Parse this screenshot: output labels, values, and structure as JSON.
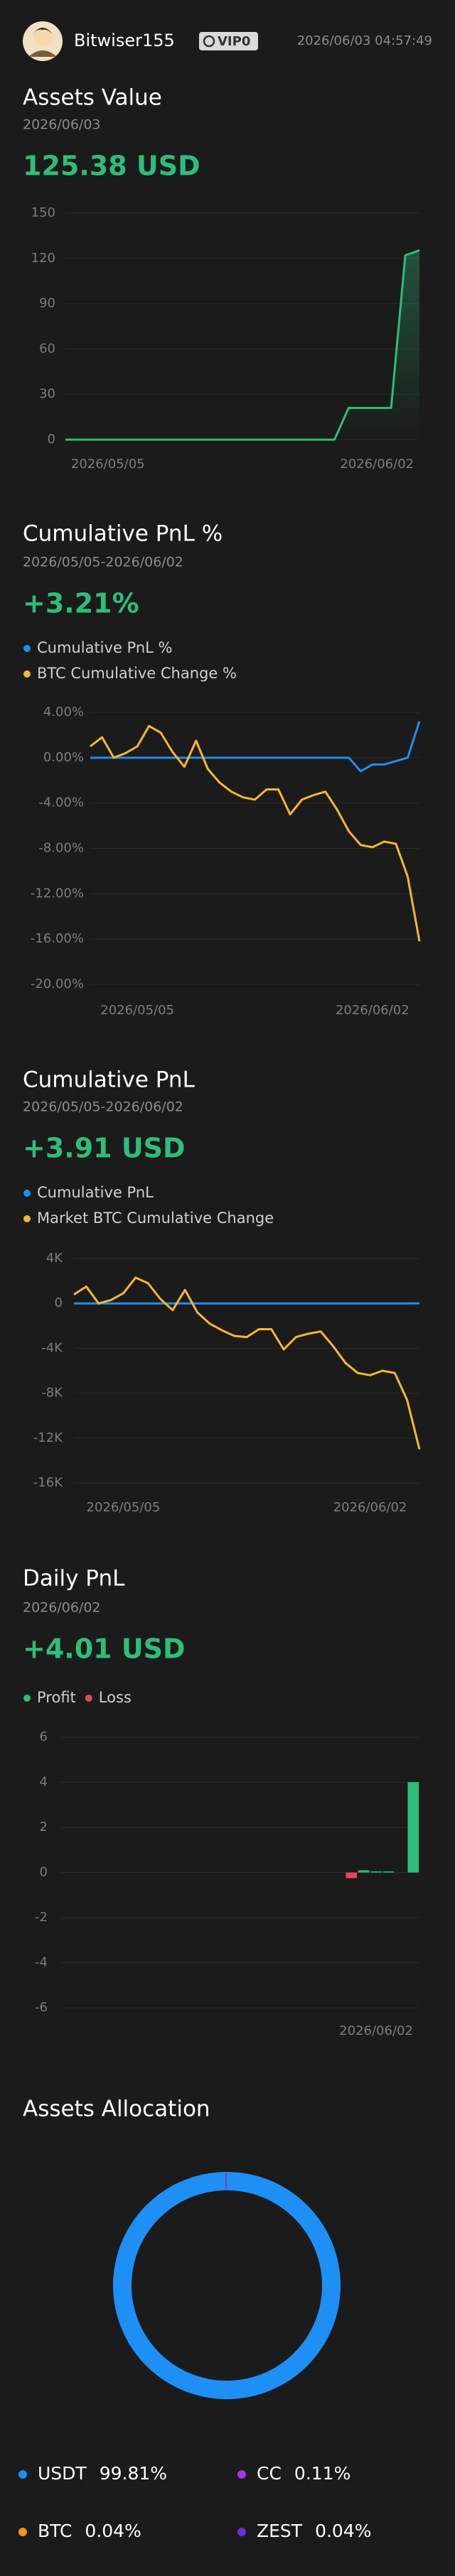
{
  "header": {
    "username": "Bitwiser155",
    "badge": "VIP0",
    "timestamp": "2026/06/03 04:57:49"
  },
  "chart_data": [
    {
      "type": "line",
      "title": "Assets Value",
      "subtitle": "2026/06/03",
      "headline": "125.38 USD",
      "categories": [
        null,
        null,
        null,
        "2026/05/05",
        null,
        null,
        null,
        null,
        null,
        null,
        null,
        null,
        null,
        null,
        null,
        null,
        null,
        null,
        null,
        null,
        null,
        null,
        "2026/06/02",
        null,
        null,
        null
      ],
      "values": [
        0,
        0,
        0,
        0,
        0,
        0,
        0,
        0,
        0,
        0,
        0,
        0,
        0,
        0,
        0,
        0,
        0,
        0,
        0,
        0,
        21,
        21,
        21,
        21,
        122,
        125.38
      ],
      "color": "#2ebd7a",
      "ylim": [
        0,
        150
      ],
      "yticks": [
        0,
        30,
        60,
        90,
        120,
        150
      ],
      "grid": true
    },
    {
      "type": "line",
      "title": "Cumulative PnL %",
      "subtitle": "2026/05/05-2026/06/02",
      "headline": "+3.21%",
      "categories": [
        null,
        null,
        null,
        null,
        "2026/05/05",
        null,
        null,
        null,
        null,
        null,
        null,
        null,
        null,
        null,
        null,
        null,
        null,
        null,
        null,
        null,
        null,
        null,
        null,
        null,
        "2026/06/02",
        null,
        null,
        null,
        null
      ],
      "series": [
        {
          "name": "Cumulative PnL %",
          "color": "#1f8ef1",
          "values": [
            0,
            0,
            0,
            0,
            0,
            0,
            0,
            0,
            0,
            0,
            0,
            0,
            0,
            0,
            0,
            0,
            0,
            0,
            0,
            0,
            0,
            0,
            0,
            -1.2,
            -0.6,
            -0.6,
            -0.3,
            0,
            3.21
          ]
        },
        {
          "name": "BTC Cumulative Change %",
          "color": "#f5b82e",
          "values": [
            1.0,
            1.8,
            0,
            0.4,
            1.0,
            2.8,
            2.2,
            0.5,
            -0.8,
            1.5,
            -1.0,
            -2.2,
            -3.0,
            -3.5,
            -3.7,
            -2.8,
            -2.8,
            -5.0,
            -3.7,
            -3.3,
            -3.0,
            -4.6,
            -6.5,
            -7.7,
            -7.9,
            -7.4,
            -7.6,
            -10.5,
            -16.2
          ]
        }
      ],
      "ylim": [
        -20,
        4
      ],
      "yticks": [
        {
          "value": 4,
          "label": "4.00%"
        },
        {
          "value": 0,
          "label": "0.00%"
        },
        {
          "value": -4,
          "label": "-4.00%"
        },
        {
          "value": -8,
          "label": "-8.00%"
        },
        {
          "value": -12,
          "label": "-12.00%"
        },
        {
          "value": -16,
          "label": "-16.00%"
        },
        {
          "value": -20,
          "label": "-20.00%"
        }
      ],
      "grid": true
    },
    {
      "type": "line",
      "title": "Cumulative PnL",
      "subtitle": "2026/05/05-2026/06/02",
      "headline": "+3.91 USD",
      "categories": [
        null,
        null,
        null,
        null,
        "2026/05/05",
        null,
        null,
        null,
        null,
        null,
        null,
        null,
        null,
        null,
        null,
        null,
        null,
        null,
        null,
        null,
        null,
        null,
        null,
        null,
        "2026/06/02",
        null,
        null,
        null,
        null
      ],
      "series": [
        {
          "name": "Cumulative PnL",
          "color": "#1f8ef1",
          "values": [
            0,
            0,
            0,
            0,
            0,
            0,
            0,
            0,
            0,
            0,
            0,
            0,
            0,
            0,
            0,
            0,
            0,
            0,
            0,
            0,
            0,
            0,
            0,
            0,
            0,
            0,
            0,
            0,
            3.91
          ]
        },
        {
          "name": "Market BTC Cumulative Change",
          "color": "#f5b82e",
          "values": [
            800,
            1500,
            0,
            300,
            900,
            2300,
            1800,
            400,
            -600,
            1200,
            -800,
            -1800,
            -2400,
            -2900,
            -3000,
            -2300,
            -2300,
            -4100,
            -3000,
            -2700,
            -2500,
            -3800,
            -5300,
            -6200,
            -6400,
            -6000,
            -6200,
            -8600,
            -13000
          ]
        }
      ],
      "ylim": [
        -16000,
        4000
      ],
      "yticks": [
        {
          "value": 4000,
          "label": "4K"
        },
        0,
        {
          "value": -4000,
          "label": "-4K"
        },
        {
          "value": -8000,
          "label": "-8K"
        },
        {
          "value": -12000,
          "label": "-12K"
        },
        {
          "value": -16000,
          "label": "-16K"
        }
      ],
      "grid": true
    },
    {
      "type": "bar",
      "title": "Daily PnL",
      "subtitle": "2026/06/02",
      "headline": "+4.01 USD",
      "categories": [
        null,
        null,
        null,
        null,
        null,
        null,
        null,
        null,
        null,
        null,
        null,
        null,
        null,
        null,
        null,
        null,
        null,
        null,
        null,
        null,
        null,
        null,
        null,
        null,
        null,
        "2026/06/02",
        null,
        null,
        null
      ],
      "series": [
        {
          "name": "Profit",
          "color": "#2ebd7a",
          "values": [
            0,
            0,
            0,
            0,
            0,
            0,
            0,
            0,
            0,
            0,
            0,
            0,
            0,
            0,
            0,
            0,
            0,
            0,
            0,
            0,
            0,
            0,
            0,
            null,
            0.1,
            0.05,
            0.05,
            0,
            4.01
          ]
        },
        {
          "name": "Loss",
          "color": "#e8435a",
          "values": [
            null,
            null,
            null,
            null,
            null,
            null,
            null,
            null,
            null,
            null,
            null,
            null,
            null,
            null,
            null,
            null,
            null,
            null,
            null,
            null,
            null,
            null,
            null,
            -0.25,
            null,
            null,
            null,
            null,
            null
          ]
        }
      ],
      "ylim": [
        -6,
        6
      ],
      "yticks": [
        6,
        4,
        2,
        0,
        -2,
        -4,
        -6
      ],
      "grid": true
    },
    {
      "type": "pie",
      "title": "Assets Allocation",
      "categories": [
        "USDT",
        "CC",
        "BTC",
        "ZEST"
      ],
      "values": [
        99.81,
        0.11,
        0.04,
        0.04
      ],
      "value_labels": [
        "99.81%",
        "0.11%",
        "0.04%",
        "0.04%"
      ],
      "colors": [
        "#1e8ff5",
        "#a336e6",
        "#f7931a",
        "#6a2fd9"
      ]
    }
  ]
}
